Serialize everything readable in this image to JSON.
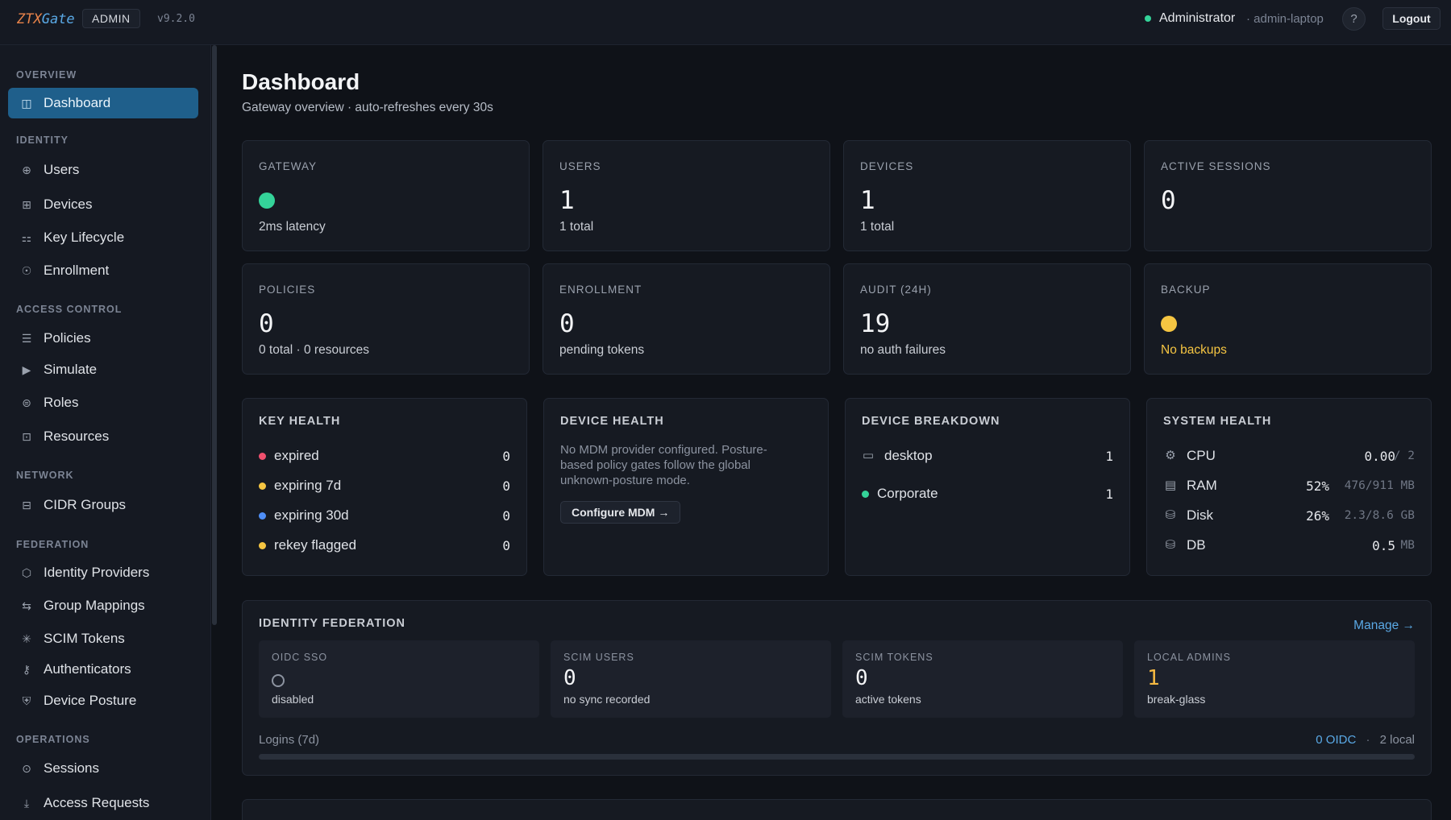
{
  "header": {
    "brand_left": "ZTX",
    "brand_right": "Gate",
    "badge": "ADMIN",
    "version": "v9.2.0",
    "user_name": "Administrator",
    "user_host": "· admin-laptop",
    "help": "?",
    "logout": "Logout"
  },
  "sidebar": {
    "sections": {
      "overview": "OVERVIEW",
      "identity": "IDENTITY",
      "access": "ACCESS CONTROL",
      "network": "NETWORK",
      "federation": "FEDERATION",
      "operations": "OPERATIONS"
    },
    "items": {
      "dashboard": "Dashboard",
      "users": "Users",
      "devices": "Devices",
      "key_lifecycle": "Key Lifecycle",
      "enrollment": "Enrollment",
      "policies": "Policies",
      "simulate": "Simulate",
      "roles": "Roles",
      "resources": "Resources",
      "cidr_groups": "CIDR Groups",
      "identity_providers": "Identity Providers",
      "group_mappings": "Group Mappings",
      "scim_tokens": "SCIM Tokens",
      "authenticators": "Authenticators",
      "device_posture": "Device Posture",
      "sessions": "Sessions",
      "access_requests": "Access Requests"
    }
  },
  "page": {
    "title": "Dashboard",
    "subtitle": "Gateway overview · auto-refreshes every 30s"
  },
  "stats": {
    "gateway": {
      "label": "GATEWAY",
      "sub": "2ms latency",
      "status_color": "#34d399"
    },
    "users": {
      "label": "USERS",
      "value": "1",
      "sub": "1 total"
    },
    "devices": {
      "label": "DEVICES",
      "value": "1",
      "sub": "1 total"
    },
    "sessions": {
      "label": "ACTIVE SESSIONS",
      "value": "0"
    },
    "policies": {
      "label": "POLICIES",
      "value": "0",
      "sub": "0 total · 0 resources"
    },
    "enrollment": {
      "label": "ENROLLMENT",
      "value": "0",
      "sub": "pending tokens"
    },
    "audit": {
      "label": "AUDIT (24H)",
      "value": "19",
      "sub": "no auth failures"
    },
    "backup": {
      "label": "BACKUP",
      "sub": "No backups",
      "status_color": "#f5c542"
    }
  },
  "key_health": {
    "title": "KEY HEALTH",
    "rows": [
      {
        "name": "expired",
        "value": "0",
        "color": "#f0506e"
      },
      {
        "name": "expiring 7d",
        "value": "0",
        "color": "#f5c542"
      },
      {
        "name": "expiring 30d",
        "value": "0",
        "color": "#4f8ff7"
      },
      {
        "name": "rekey flagged",
        "value": "0",
        "color": "#f5c542"
      }
    ]
  },
  "device_health": {
    "title": "DEVICE HEALTH",
    "message": "No MDM provider configured. Posture-based policy gates follow the global unknown-posture mode.",
    "button": "Configure MDM →"
  },
  "device_breakdown": {
    "title": "DEVICE BREAKDOWN",
    "os": {
      "name": "desktop",
      "value": "1",
      "icon": "monitor-icon"
    },
    "group": {
      "name": "Corporate",
      "value": "1",
      "color": "#34d399"
    }
  },
  "system_health": {
    "title": "SYSTEM HEALTH",
    "cpu": {
      "name": "CPU",
      "value": "0.00",
      "unit": "/ 2"
    },
    "ram": {
      "name": "RAM",
      "pct": "52%",
      "detail": "476/911 MB"
    },
    "disk": {
      "name": "Disk",
      "pct": "26%",
      "detail": "2.3/8.6 GB"
    },
    "db": {
      "name": "DB",
      "value": "0.5",
      "unit": "MB"
    }
  },
  "federation": {
    "title": "IDENTITY FEDERATION",
    "manage": "Manage →",
    "oidc": {
      "label": "OIDC SSO",
      "sub": "disabled"
    },
    "scim_users": {
      "label": "SCIM USERS",
      "value": "0",
      "sub": "no sync recorded"
    },
    "scim_tokens": {
      "label": "SCIM TOKENS",
      "value": "0",
      "sub": "active tokens"
    },
    "local_admins": {
      "label": "LOCAL ADMINS",
      "value": "1",
      "sub": "break-glass",
      "color": "#f5b942"
    },
    "logins_label": "Logins (7d)",
    "logins_oidc": "0 OIDC",
    "logins_sep": "·",
    "logins_local": "2 local"
  }
}
